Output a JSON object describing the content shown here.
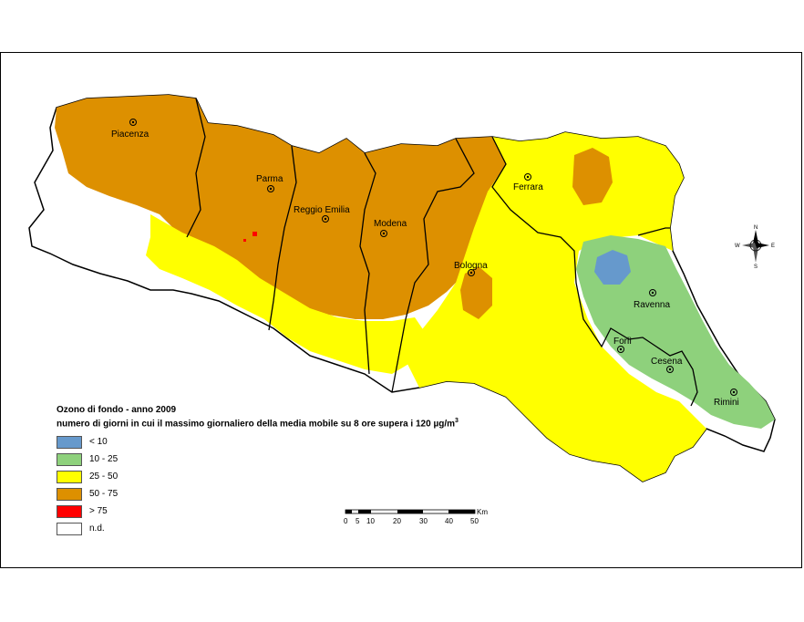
{
  "legend": {
    "title_line1": "Ozono di fondo - anno 2009",
    "title_line2": "numero di giorni in cui il massimo giornaliero della media mobile su 8 ore supera i 120 µg/m",
    "title_sup": "3",
    "items": [
      {
        "label": "< 10",
        "color": "#6699cc"
      },
      {
        "label": "10 - 25",
        "color": "#8ed17c"
      },
      {
        "label": "25 - 50",
        "color": "#ffff00"
      },
      {
        "label": "50 - 75",
        "color": "#dd9000"
      },
      {
        "label": "> 75",
        "color": "#ff0000"
      },
      {
        "label": "n.d.",
        "color": "#ffffff"
      }
    ]
  },
  "cities": [
    "Piacenza",
    "Parma",
    "Reggio Emilia",
    "Modena",
    "Ferrara",
    "Bologna",
    "Ravenna",
    "Forlì",
    "Cesena",
    "Rimini"
  ],
  "scale": {
    "ticks": [
      "0",
      "5",
      "10",
      "20",
      "30",
      "40",
      "50"
    ],
    "unit": "Km"
  },
  "compass": {
    "n": "N",
    "s": "S",
    "e": "E",
    "w": "W"
  }
}
